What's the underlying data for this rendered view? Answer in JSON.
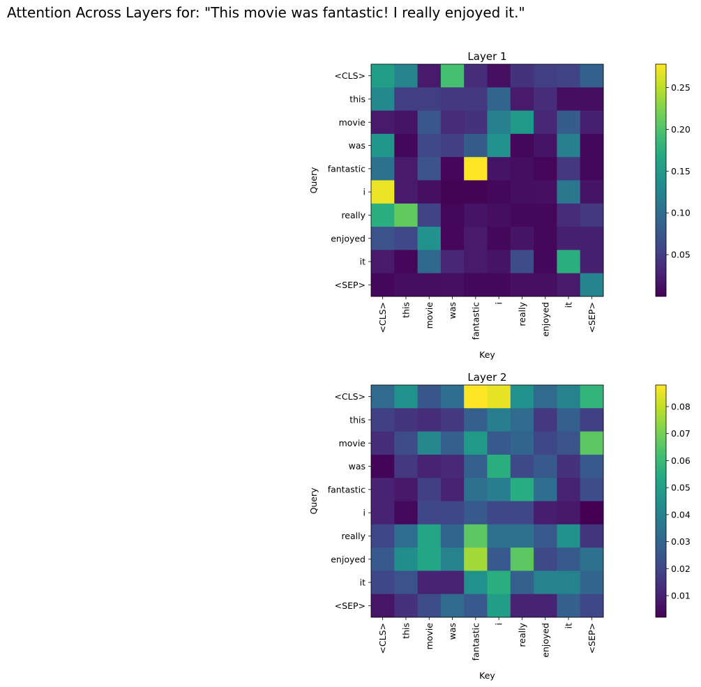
{
  "suptitle": "Attention Across Layers for: \"This movie was fantastic! I really enjoyed it.\"",
  "chart_data": [
    {
      "type": "heatmap",
      "title": "Layer 1",
      "xlabel": "Key",
      "ylabel": "Query",
      "x_labels": [
        "<CLS>",
        "this",
        "movie",
        "was",
        "fantastic",
        "i",
        "really",
        "enjoyed",
        "it",
        "<SEP>"
      ],
      "y_labels": [
        "<CLS>",
        "this",
        "movie",
        "was",
        "fantastic",
        "i",
        "really",
        "enjoyed",
        "it",
        "<SEP>"
      ],
      "colorscale": "viridis",
      "vmin": 0.0,
      "vmax": 0.278,
      "colorbar_ticks": [
        0.05,
        0.1,
        0.15,
        0.2,
        0.25
      ],
      "colorbar_tick_labels": [
        "0.05",
        "0.10",
        "0.15",
        "0.20",
        "0.25"
      ],
      "values": [
        [
          0.155,
          0.125,
          0.02,
          0.195,
          0.035,
          0.012,
          0.04,
          0.05,
          0.055,
          0.085
        ],
        [
          0.13,
          0.05,
          0.05,
          0.045,
          0.045,
          0.09,
          0.02,
          0.035,
          0.01,
          0.01
        ],
        [
          0.02,
          0.015,
          0.075,
          0.035,
          0.04,
          0.12,
          0.15,
          0.03,
          0.08,
          0.025
        ],
        [
          0.145,
          0.005,
          0.06,
          0.05,
          0.08,
          0.14,
          0.005,
          0.015,
          0.12,
          0.005
        ],
        [
          0.105,
          0.02,
          0.07,
          0.004,
          0.278,
          0.015,
          0.01,
          0.004,
          0.045,
          0.005
        ],
        [
          0.27,
          0.02,
          0.012,
          0.002,
          0.002,
          0.005,
          0.01,
          0.012,
          0.11,
          0.015
        ],
        [
          0.175,
          0.21,
          0.055,
          0.005,
          0.015,
          0.01,
          0.005,
          0.005,
          0.035,
          0.045
        ],
        [
          0.07,
          0.06,
          0.14,
          0.004,
          0.02,
          0.005,
          0.015,
          0.005,
          0.025,
          0.025
        ],
        [
          0.02,
          0.004,
          0.095,
          0.03,
          0.02,
          0.015,
          0.065,
          0.005,
          0.175,
          0.025
        ],
        [
          0.005,
          0.01,
          0.01,
          0.012,
          0.005,
          0.005,
          0.012,
          0.012,
          0.02,
          0.125
        ]
      ]
    },
    {
      "type": "heatmap",
      "title": "Layer 2",
      "xlabel": "Key",
      "ylabel": "Query",
      "x_labels": [
        "<CLS>",
        "this",
        "movie",
        "was",
        "fantastic",
        "i",
        "really",
        "enjoyed",
        "it",
        "<SEP>"
      ],
      "y_labels": [
        "<CLS>",
        "this",
        "movie",
        "was",
        "fantastic",
        "i",
        "really",
        "enjoyed",
        "it",
        "<SEP>"
      ],
      "colorscale": "viridis",
      "vmin": 0.002,
      "vmax": 0.088,
      "colorbar_ticks": [
        0.01,
        0.02,
        0.03,
        0.04,
        0.05,
        0.06,
        0.07,
        0.08
      ],
      "colorbar_tick_labels": [
        "0.01",
        "0.02",
        "0.03",
        "0.04",
        "0.05",
        "0.06",
        "0.07",
        "0.08"
      ],
      "values": [
        [
          0.032,
          0.045,
          0.025,
          0.033,
          0.088,
          0.085,
          0.045,
          0.032,
          0.04,
          0.058
        ],
        [
          0.018,
          0.015,
          0.013,
          0.016,
          0.028,
          0.038,
          0.032,
          0.016,
          0.028,
          0.018
        ],
        [
          0.013,
          0.022,
          0.042,
          0.028,
          0.048,
          0.026,
          0.03,
          0.02,
          0.024,
          0.066
        ],
        [
          0.003,
          0.016,
          0.01,
          0.012,
          0.028,
          0.056,
          0.021,
          0.026,
          0.014,
          0.026
        ],
        [
          0.01,
          0.008,
          0.018,
          0.01,
          0.034,
          0.038,
          0.055,
          0.033,
          0.01,
          0.022
        ],
        [
          0.01,
          0.004,
          0.02,
          0.02,
          0.026,
          0.02,
          0.02,
          0.009,
          0.008,
          0.002
        ],
        [
          0.02,
          0.033,
          0.052,
          0.03,
          0.066,
          0.034,
          0.034,
          0.026,
          0.045,
          0.015
        ],
        [
          0.026,
          0.044,
          0.053,
          0.04,
          0.076,
          0.026,
          0.066,
          0.021,
          0.026,
          0.034
        ],
        [
          0.02,
          0.024,
          0.01,
          0.01,
          0.045,
          0.056,
          0.028,
          0.04,
          0.04,
          0.03
        ],
        [
          0.007,
          0.014,
          0.022,
          0.032,
          0.026,
          0.05,
          0.01,
          0.01,
          0.028,
          0.02
        ]
      ]
    }
  ]
}
